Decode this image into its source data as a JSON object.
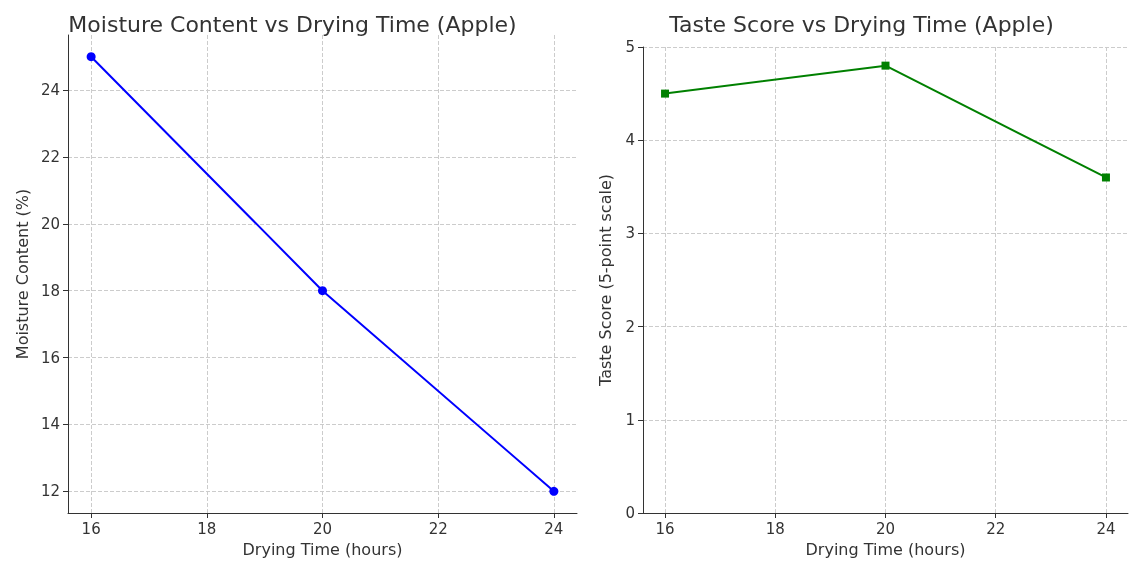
{
  "chart_data": [
    {
      "type": "line",
      "title": "Moisture Content vs Drying Time (Apple)",
      "xlabel": "Drying Time (hours)",
      "ylabel": "Moisture Content (%)",
      "x": [
        16,
        20,
        24
      ],
      "series": [
        {
          "color": "#0000ff",
          "values": [
            25,
            18,
            12
          ]
        }
      ],
      "xlim": [
        15.6,
        24.4
      ],
      "xticks": [
        16,
        18,
        20,
        22,
        24
      ],
      "ylim": [
        11.35,
        25.65
      ],
      "yticks": [
        12,
        14,
        16,
        18,
        20,
        22,
        24
      ],
      "grid": true,
      "marker": "circle",
      "line_style": "solid"
    },
    {
      "type": "line",
      "title": "Taste Score vs Drying Time (Apple)",
      "xlabel": "Drying Time (hours)",
      "ylabel": "Taste Score (5-point scale)",
      "x": [
        16,
        20,
        24
      ],
      "series": [
        {
          "color": "#008000",
          "values": [
            4.5,
            4.8,
            3.6
          ]
        }
      ],
      "xlim": [
        15.6,
        24.4
      ],
      "xticks": [
        16,
        18,
        20,
        22,
        24
      ],
      "ylim": [
        0,
        5
      ],
      "yticks": [
        0,
        1,
        2,
        3,
        4,
        5
      ],
      "grid": true,
      "marker": "square",
      "line_style": "solid"
    }
  ]
}
